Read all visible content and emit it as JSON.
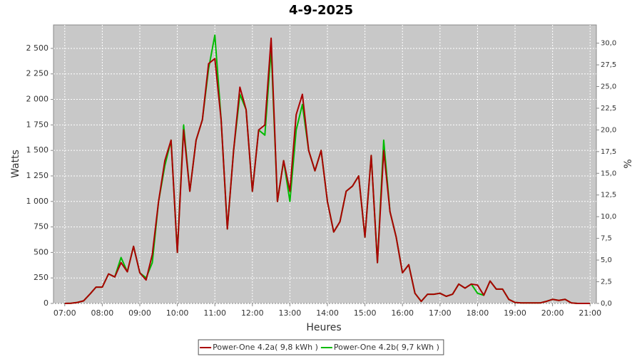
{
  "chart_data": {
    "type": "line",
    "title": "4-9-2025",
    "x_label": "Heures",
    "y_label": "Watts",
    "y2_label": "%",
    "x": [
      "07:00",
      "07:10",
      "07:20",
      "07:30",
      "07:40",
      "07:50",
      "08:00",
      "08:10",
      "08:20",
      "08:30",
      "08:40",
      "08:50",
      "09:00",
      "09:10",
      "09:20",
      "09:30",
      "09:40",
      "09:50",
      "10:00",
      "10:10",
      "10:20",
      "10:30",
      "10:40",
      "10:50",
      "11:00",
      "11:10",
      "11:20",
      "11:30",
      "11:40",
      "11:50",
      "12:00",
      "12:10",
      "12:20",
      "12:30",
      "12:40",
      "12:50",
      "13:00",
      "13:10",
      "13:20",
      "13:30",
      "13:40",
      "13:50",
      "14:00",
      "14:10",
      "14:20",
      "14:30",
      "14:40",
      "14:50",
      "15:00",
      "15:10",
      "15:20",
      "15:30",
      "15:40",
      "15:50",
      "16:00",
      "16:10",
      "16:20",
      "16:30",
      "16:40",
      "16:50",
      "17:00",
      "17:10",
      "17:20",
      "17:30",
      "17:40",
      "17:50",
      "18:00",
      "18:10",
      "18:20",
      "18:30",
      "18:40",
      "18:50",
      "19:00",
      "19:10",
      "19:20",
      "19:30",
      "19:40",
      "19:50",
      "20:00",
      "20:10",
      "20:20",
      "20:30",
      "20:40",
      "20:50",
      "21:00"
    ],
    "series": [
      {
        "name": "Power-One 4.2a( 9,8 kWh )",
        "color": "#aa0000",
        "values": [
          0,
          2,
          10,
          25,
          90,
          160,
          160,
          290,
          260,
          400,
          310,
          560,
          300,
          230,
          480,
          1000,
          1400,
          1600,
          500,
          1700,
          1100,
          1600,
          1800,
          2350,
          2400,
          1800,
          730,
          1500,
          2120,
          1900,
          1100,
          1700,
          1750,
          2600,
          1000,
          1400,
          1100,
          1850,
          2050,
          1500,
          1300,
          1500,
          1000,
          700,
          800,
          1100,
          1150,
          1250,
          650,
          1450,
          400,
          1500,
          900,
          650,
          300,
          380,
          100,
          20,
          90,
          90,
          100,
          70,
          90,
          190,
          150,
          190,
          180,
          80,
          220,
          140,
          140,
          40,
          10,
          5,
          5,
          5,
          5,
          20,
          40,
          30,
          40,
          5,
          0,
          0,
          0
        ]
      },
      {
        "name": "Power-One 4.2b( 9,7 kWh )",
        "color": "#00bb00",
        "values": [
          0,
          2,
          10,
          25,
          90,
          160,
          160,
          290,
          260,
          450,
          310,
          560,
          300,
          250,
          400,
          1000,
          1350,
          1600,
          500,
          1750,
          1100,
          1600,
          1800,
          2300,
          2630,
          1800,
          730,
          1500,
          2050,
          1900,
          1100,
          1700,
          1650,
          2500,
          1000,
          1400,
          1000,
          1700,
          1950,
          1500,
          1300,
          1500,
          1000,
          700,
          800,
          1100,
          1150,
          1250,
          650,
          1450,
          400,
          1600,
          900,
          650,
          300,
          380,
          100,
          20,
          90,
          90,
          100,
          70,
          90,
          190,
          150,
          190,
          100,
          80,
          220,
          140,
          140,
          40,
          10,
          5,
          5,
          5,
          5,
          20,
          40,
          30,
          40,
          5,
          0,
          0,
          0
        ]
      }
    ],
    "xlim": [
      "06:42",
      "21:10"
    ],
    "xticks": [
      "07:00",
      "08:00",
      "09:00",
      "10:00",
      "11:00",
      "12:00",
      "13:00",
      "14:00",
      "15:00",
      "16:00",
      "17:00",
      "18:00",
      "19:00",
      "20:00",
      "21:00"
    ],
    "ylim": [
      0,
      2730
    ],
    "yticks": [
      0,
      250,
      500,
      750,
      {
        "value": 1000,
        "label": "1 000"
      },
      {
        "value": 1250,
        "label": "1 250"
      },
      {
        "value": 1500,
        "label": "1 500"
      },
      {
        "value": 1750,
        "label": "1 750"
      },
      {
        "value": 2000,
        "label": "2 000"
      },
      {
        "value": 2250,
        "label": "2 250"
      },
      {
        "value": 2500,
        "label": "2 500"
      }
    ],
    "y2lim": [
      0,
      32.1
    ],
    "y2ticks": [
      {
        "value": 0,
        "label": "0,0"
      },
      {
        "value": 2.5,
        "label": "2,5"
      },
      {
        "value": 5,
        "label": "5,0"
      },
      {
        "value": 7.5,
        "label": "7,5"
      },
      {
        "value": 10,
        "label": "10,0"
      },
      {
        "value": 12.5,
        "label": "12,5"
      },
      {
        "value": 15,
        "label": "15,0"
      },
      {
        "value": 17.5,
        "label": "17,5"
      },
      {
        "value": 20,
        "label": "20,0"
      },
      {
        "value": 22.5,
        "label": "22,5"
      },
      {
        "value": 25,
        "label": "25,0"
      },
      {
        "value": 27.5,
        "label": "27,5"
      },
      {
        "value": 30,
        "label": "30,0"
      }
    ],
    "grid": true,
    "legend": "bottom"
  }
}
